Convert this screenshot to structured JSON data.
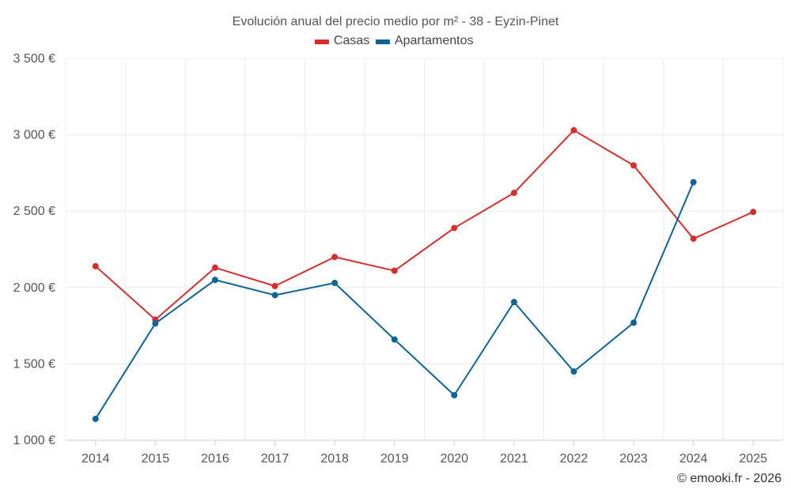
{
  "chart_data": {
    "type": "line",
    "title": "Evolución anual del precio medio por m² - 38 - Eyzin-Pinet",
    "categories": [
      "2014",
      "2015",
      "2016",
      "2017",
      "2018",
      "2019",
      "2020",
      "2021",
      "2022",
      "2023",
      "2024",
      "2025"
    ],
    "series": [
      {
        "name": "Casas",
        "color": "#d32f2f",
        "values": [
          2140,
          1790,
          2130,
          2010,
          2200,
          2110,
          2390,
          2620,
          3030,
          2800,
          2320,
          2495
        ]
      },
      {
        "name": "Apartamentos",
        "color": "#0d6496",
        "values": [
          1140,
          1765,
          2050,
          1950,
          2030,
          1660,
          1295,
          1905,
          1450,
          1770,
          2690,
          null
        ]
      }
    ],
    "yticks": [
      1000,
      1500,
      2000,
      2500,
      3000,
      3500
    ],
    "ytick_labels": [
      "1 000 €",
      "1 500 €",
      "2 000 €",
      "2 500 €",
      "3 000 €",
      "3 500 €"
    ],
    "ylim": [
      1000,
      3500
    ],
    "xlabel": "",
    "ylabel": "",
    "grid": true,
    "legend_position": "top-center"
  },
  "credit": "© emooki.fr - 2026"
}
